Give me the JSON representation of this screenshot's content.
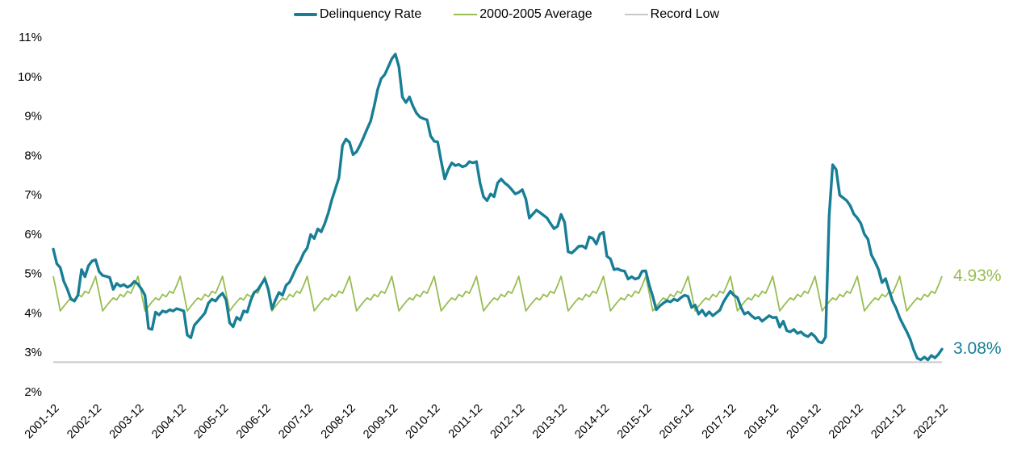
{
  "legend": {
    "items": [
      {
        "id": "delinquency-rate",
        "label": "Delinquency Rate",
        "color": "#187e95",
        "swatch_thickness": 4
      },
      {
        "id": "avg-2000-2005",
        "label": "2000-2005 Average",
        "color": "#97bd51",
        "swatch_thickness": 2
      },
      {
        "id": "record-low",
        "label": "Record Low",
        "color": "#c9c9c9",
        "swatch_thickness": 2
      }
    ]
  },
  "annotations": {
    "average_end": {
      "text": "4.93%",
      "value": 4.93,
      "color": "#97bd51"
    },
    "delinquency_end": {
      "text": "3.08%",
      "value": 3.08,
      "color": "#187e95"
    }
  },
  "chart_data": {
    "type": "line",
    "title": "",
    "xlabel": "",
    "ylabel": "",
    "x_unit": "month",
    "x_range": [
      "2001-12",
      "2022-12"
    ],
    "x_tick_labels": [
      "2001-12",
      "2002-12",
      "2003-12",
      "2004-12",
      "2005-12",
      "2006-12",
      "2007-12",
      "2008-12",
      "2009-12",
      "2010-12",
      "2011-12",
      "2012-12",
      "2013-12",
      "2014-12",
      "2015-12",
      "2016-12",
      "2017-12",
      "2018-12",
      "2019-12",
      "2020-12",
      "2021-12",
      "2022-12"
    ],
    "y_tick_labels": [
      "11%",
      "10%",
      "9%",
      "8%",
      "7%",
      "6%",
      "5%",
      "4%",
      "3%",
      "2%"
    ],
    "ylim": [
      2,
      11
    ],
    "grid": false,
    "axis_lines": false,
    "legend_position": "top-center",
    "series": [
      {
        "name": "Delinquency Rate",
        "type": "line",
        "color": "#187e95",
        "width": 3.4,
        "start": "2001-12",
        "frequency": "monthly",
        "values": [
          5.62,
          5.25,
          5.15,
          4.8,
          4.6,
          4.35,
          4.3,
          4.45,
          5.1,
          4.92,
          5.2,
          5.32,
          5.35,
          5.05,
          4.95,
          4.93,
          4.9,
          4.6,
          4.75,
          4.68,
          4.72,
          4.65,
          4.7,
          4.8,
          4.73,
          4.61,
          4.45,
          3.61,
          3.58,
          4.02,
          3.95,
          4.05,
          4.02,
          4.08,
          4.05,
          4.11,
          4.08,
          4.05,
          3.44,
          3.37,
          3.69,
          3.79,
          3.89,
          4.0,
          4.25,
          4.35,
          4.3,
          4.42,
          4.5,
          4.33,
          3.75,
          3.65,
          3.89,
          3.82,
          4.05,
          4.02,
          4.32,
          4.52,
          4.59,
          4.73,
          4.87,
          4.59,
          4.1,
          4.33,
          4.52,
          4.45,
          4.7,
          4.78,
          4.97,
          5.17,
          5.31,
          5.52,
          5.65,
          5.99,
          5.89,
          6.13,
          6.06,
          6.27,
          6.54,
          6.88,
          7.15,
          7.43,
          8.25,
          8.41,
          8.33,
          8.02,
          8.09,
          8.26,
          8.46,
          8.67,
          8.87,
          9.25,
          9.68,
          9.95,
          10.05,
          10.25,
          10.45,
          10.57,
          10.25,
          9.48,
          9.34,
          9.48,
          9.25,
          9.07,
          8.97,
          8.93,
          8.9,
          8.49,
          8.36,
          8.34,
          7.85,
          7.4,
          7.64,
          7.81,
          7.74,
          7.77,
          7.71,
          7.74,
          7.84,
          7.81,
          7.84,
          7.3,
          6.95,
          6.85,
          7.02,
          6.95,
          7.3,
          7.4,
          7.3,
          7.23,
          7.13,
          7.02,
          7.06,
          7.13,
          6.89,
          6.41,
          6.51,
          6.61,
          6.55,
          6.48,
          6.41,
          6.27,
          6.14,
          6.2,
          6.5,
          6.3,
          5.55,
          5.52,
          5.6,
          5.69,
          5.7,
          5.64,
          5.93,
          5.89,
          5.75,
          6.0,
          6.05,
          5.44,
          5.37,
          5.1,
          5.12,
          5.08,
          5.06,
          4.86,
          4.92,
          4.86,
          4.89,
          5.06,
          5.07,
          4.7,
          4.42,
          4.08,
          4.18,
          4.25,
          4.31,
          4.28,
          4.35,
          4.31,
          4.39,
          4.45,
          4.42,
          4.14,
          4.2,
          3.97,
          4.07,
          3.93,
          4.03,
          3.93,
          4.0,
          4.07,
          4.27,
          4.42,
          4.55,
          4.45,
          4.39,
          4.14,
          3.97,
          4.02,
          3.93,
          3.86,
          3.89,
          3.79,
          3.86,
          3.93,
          3.88,
          3.89,
          3.64,
          3.79,
          3.55,
          3.52,
          3.58,
          3.48,
          3.52,
          3.44,
          3.4,
          3.48,
          3.4,
          3.27,
          3.24,
          3.39,
          6.45,
          7.76,
          7.64,
          6.99,
          6.92,
          6.85,
          6.72,
          6.51,
          6.41,
          6.27,
          6.0,
          5.87,
          5.47,
          5.3,
          5.1,
          4.77,
          4.87,
          4.58,
          4.3,
          4.12,
          3.88,
          3.7,
          3.53,
          3.33,
          3.06,
          2.85,
          2.81,
          2.88,
          2.81,
          2.92,
          2.86,
          2.95,
          3.08
        ],
        "end_label": "3.08%",
        "end_value": 3.08
      },
      {
        "name": "2000-2005 Average",
        "type": "line",
        "color": "#97bd51",
        "width": 1.8,
        "pattern": "seasonal-repeat-annually",
        "seasonal_values_jan_dec": [
          4.5,
          4.05,
          4.17,
          4.28,
          4.38,
          4.33,
          4.47,
          4.41,
          4.55,
          4.5,
          4.7,
          4.93
        ],
        "end_label": "4.93%",
        "end_value": 4.93
      },
      {
        "name": "Record Low",
        "type": "hline",
        "color": "#c9c9c9",
        "width": 2,
        "value": 2.75
      }
    ],
    "annotations": [
      {
        "text": "4.93%",
        "y": 4.93,
        "color": "#97bd51"
      },
      {
        "text": "3.08%",
        "y": 3.08,
        "color": "#187e95"
      }
    ]
  }
}
